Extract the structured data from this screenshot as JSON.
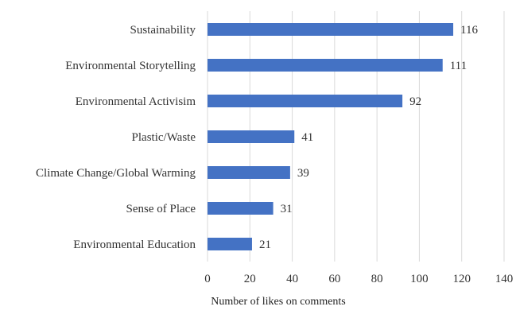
{
  "chart_data": {
    "type": "bar",
    "orientation": "horizontal",
    "categories": [
      "Sustainability",
      "Environmental Storytelling",
      "Environmental Activisim",
      "Plastic/Waste",
      "Climate Change/Global Warming",
      "Sense of Place",
      "Environmental Education"
    ],
    "values": [
      116,
      111,
      92,
      41,
      39,
      31,
      21
    ],
    "xlabel": "Number of likes on comments",
    "ylabel": "",
    "xlim": [
      0,
      140
    ],
    "xticks": [
      0,
      20,
      40,
      60,
      80,
      100,
      120,
      140
    ],
    "grid": true,
    "bar_color": "#4472C4",
    "grid_color": "#D9D9D9"
  }
}
